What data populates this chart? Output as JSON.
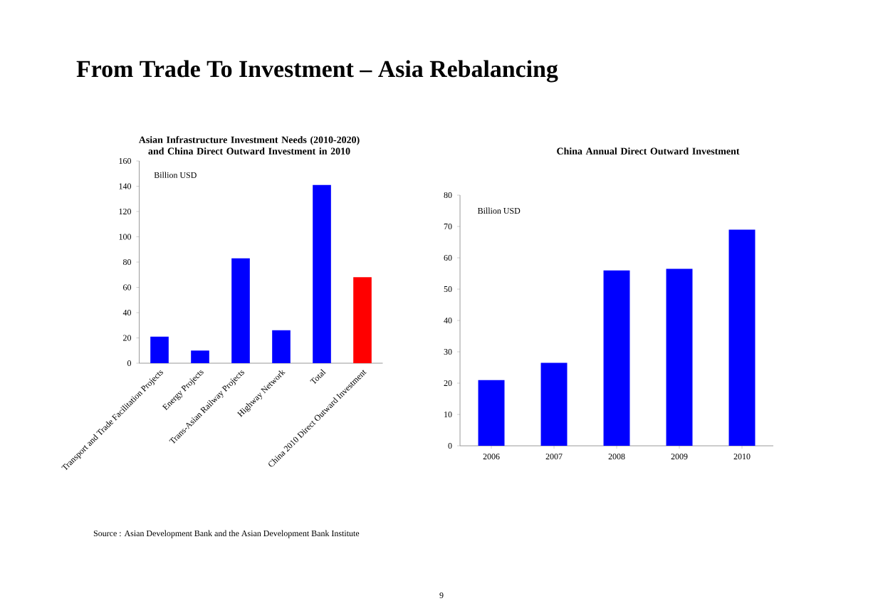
{
  "chart_data": [
    {
      "type": "other",
      "title": "From Trade To Investment – Asia Rebalancing",
      "annotations": [
        "9"
      ]
    },
    {
      "type": "bar",
      "title": "Asian Infrastructure Investment Needs (2010-2020) and China Direct Outward Investment in 2010",
      "ylabel": "Billion USD",
      "categories": [
        "Transport and Trade Facilitation Projects",
        "Energy Projects",
        "Trans-Asian Railway Projects",
        "Highway Network",
        "Total",
        "China 2010 Direct Outward Investment"
      ],
      "values": [
        21,
        10,
        83,
        26,
        141,
        68
      ],
      "colors": [
        "#0000ff",
        "#0000ff",
        "#0000ff",
        "#0000ff",
        "#0000ff",
        "#ff0000"
      ],
      "ylim": [
        0,
        160
      ],
      "yticks": [
        0,
        20,
        40,
        60,
        80,
        100,
        120,
        140,
        160
      ],
      "annotations": [
        "Source : Asian Development Bank and the Asian Development Bank Institute"
      ]
    },
    {
      "type": "bar",
      "title": "China Annual Direct Outward Investment",
      "ylabel": "Billion USD",
      "categories": [
        "2006",
        "2007",
        "2008",
        "2009",
        "2010"
      ],
      "values": [
        21,
        26.5,
        56,
        56.5,
        69
      ],
      "color": "#0000ff",
      "ylim": [
        0,
        80
      ],
      "yticks": [
        0,
        10,
        20,
        30,
        40,
        50,
        60,
        70,
        80
      ]
    }
  ]
}
